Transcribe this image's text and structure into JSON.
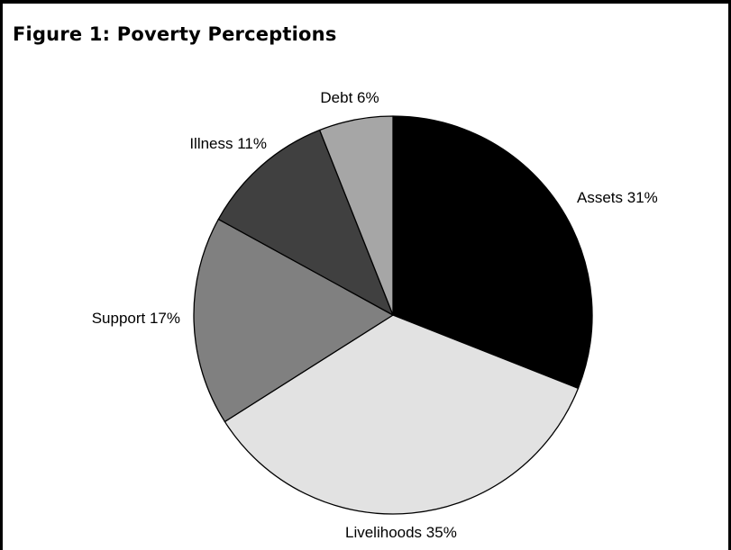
{
  "title": "Figure 1: Poverty Perceptions",
  "chart_data": {
    "type": "pie",
    "title": "Figure 1: Poverty Perceptions",
    "slices": [
      {
        "category": "Assets",
        "value": 31,
        "label": "Assets 31%",
        "color": "#000000"
      },
      {
        "category": "Livelihoods",
        "value": 35,
        "label": "Livelihoods 35%",
        "color": "#e2e2e2"
      },
      {
        "category": "Support",
        "value": 17,
        "label": "Support 17%",
        "color": "#808080"
      },
      {
        "category": "Illness",
        "value": 11,
        "label": "Illness 11%",
        "color": "#404040"
      },
      {
        "category": "Debt",
        "value": 6,
        "label": "Debt 6%",
        "color": "#a6a6a6"
      }
    ],
    "start": "12 o'clock",
    "direction": "clockwise",
    "legend": "none",
    "slice_outline": "#000000"
  }
}
